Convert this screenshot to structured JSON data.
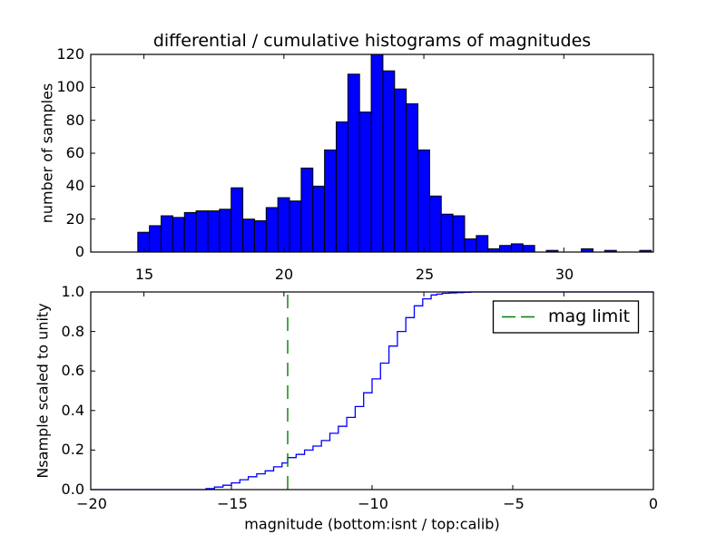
{
  "colors": {
    "bar": "#0000ff",
    "bar_edge": "#000000",
    "curve": "#0000ff",
    "limit_line": "#008000",
    "frame": "#000000",
    "background": "#ffffff",
    "text": "#000000"
  },
  "chart_data": [
    {
      "type": "bar",
      "subplot": "top",
      "title": "differential / cumulative histograms of magnitudes",
      "ylabel": "number of samples",
      "xlim": [
        13.1,
        33.2
      ],
      "ylim": [
        0,
        120
      ],
      "xticks": [
        15,
        20,
        25,
        30
      ],
      "xtick_labels": [
        "15",
        "20",
        "25",
        "30"
      ],
      "yticks": [
        0,
        20,
        40,
        60,
        80,
        100,
        120
      ],
      "ytick_labels": [
        "0",
        "20",
        "40",
        "60",
        "80",
        "100",
        "120"
      ],
      "bin_start": 14.78,
      "bin_width": 0.417,
      "values": [
        12,
        16,
        22,
        21,
        24,
        25,
        25,
        26,
        39,
        20,
        19,
        27,
        33,
        31,
        51,
        40,
        62,
        79,
        108,
        85,
        120,
        110,
        99,
        90,
        62,
        34,
        23,
        22,
        8,
        10,
        2,
        4,
        5,
        4,
        0,
        1,
        0,
        0,
        2,
        0,
        1,
        0,
        0,
        1
      ],
      "grid": false
    },
    {
      "type": "line-step",
      "subplot": "bottom",
      "xlabel": "magnitude (bottom:isnt / top:calib)",
      "ylabel": "Nsample scaled to unity",
      "xlim": [
        -20,
        0
      ],
      "ylim": [
        0,
        1
      ],
      "xticks": [
        -20,
        -15,
        -10,
        -5,
        0
      ],
      "xtick_labels": [
        "−20",
        "−15",
        "−10",
        "−5",
        "0"
      ],
      "yticks": [
        0.0,
        0.2,
        0.4,
        0.6,
        0.8,
        1.0
      ],
      "ytick_labels": [
        "0.0",
        "0.2",
        "0.4",
        "0.6",
        "0.8",
        "1.0"
      ],
      "top_spine_ticks_calib": [
        15,
        20,
        25,
        30
      ],
      "mag_limit": -13,
      "legend": {
        "label": "mag limit",
        "position": "upper right"
      },
      "points": [
        [
          -16.1,
          0.0
        ],
        [
          -15.9,
          0.005
        ],
        [
          -15.6,
          0.013
        ],
        [
          -15.3,
          0.022
        ],
        [
          -15.0,
          0.034
        ],
        [
          -14.7,
          0.05
        ],
        [
          -14.4,
          0.065
        ],
        [
          -14.1,
          0.08
        ],
        [
          -13.8,
          0.095
        ],
        [
          -13.5,
          0.115
        ],
        [
          -13.2,
          0.135
        ],
        [
          -13.0,
          0.162
        ],
        [
          -12.7,
          0.178
        ],
        [
          -12.4,
          0.2
        ],
        [
          -12.1,
          0.22
        ],
        [
          -11.8,
          0.248
        ],
        [
          -11.5,
          0.285
        ],
        [
          -11.2,
          0.32
        ],
        [
          -10.9,
          0.365
        ],
        [
          -10.6,
          0.42
        ],
        [
          -10.3,
          0.49
        ],
        [
          -10.0,
          0.56
        ],
        [
          -9.7,
          0.64
        ],
        [
          -9.4,
          0.726
        ],
        [
          -9.1,
          0.8
        ],
        [
          -8.8,
          0.87
        ],
        [
          -8.5,
          0.93
        ],
        [
          -8.2,
          0.965
        ],
        [
          -7.9,
          0.985
        ],
        [
          -7.5,
          0.993
        ],
        [
          -7.0,
          0.997
        ],
        [
          -6.5,
          1.0
        ]
      ],
      "grid": false
    }
  ]
}
